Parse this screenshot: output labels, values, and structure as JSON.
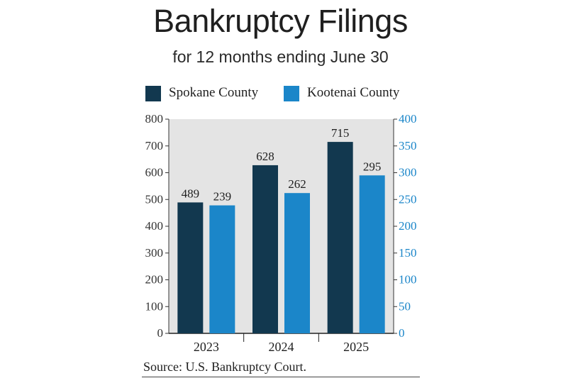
{
  "colors": {
    "spokane": "#12384f",
    "kootenai": "#1b86c9",
    "plot_bg": "#e4e4e4",
    "left_axis_text": "#333333",
    "right_axis_text": "#1b86c9"
  },
  "chart_data": {
    "type": "bar",
    "title": "Bankruptcy Filings",
    "subtitle": "for 12 months ending June 30",
    "categories": [
      "2023",
      "2024",
      "2025"
    ],
    "series": [
      {
        "name": "Spokane County",
        "values": [
          489,
          628,
          715
        ],
        "axis": "left",
        "color": "#12384f"
      },
      {
        "name": "Kootenai County",
        "values": [
          239,
          262,
          295
        ],
        "axis": "right",
        "color": "#1b86c9"
      }
    ],
    "y_left": {
      "range": [
        0,
        800
      ],
      "ticks": [
        "0",
        "100",
        "200",
        "300",
        "400",
        "500",
        "600",
        "700",
        "800"
      ]
    },
    "y_right": {
      "range": [
        0,
        400
      ],
      "ticks": [
        "0",
        "50",
        "100",
        "150",
        "200",
        "250",
        "300",
        "350",
        "400"
      ]
    },
    "legend": "top-center",
    "grid": false,
    "source": "Source: U.S. Bankruptcy Court."
  }
}
